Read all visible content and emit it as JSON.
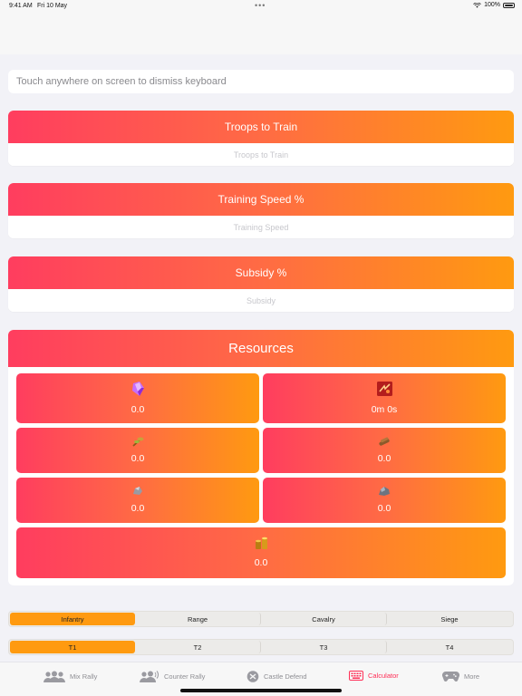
{
  "status": {
    "time": "9:41 AM",
    "date": "Fri 10 May",
    "battery": "100%"
  },
  "keyboard_hint": "Touch anywhere on screen to dismiss keyboard",
  "troops": {
    "title": "Troops to Train",
    "placeholder": "Troops to Train"
  },
  "training_speed": {
    "title": "Training Speed %",
    "placeholder": "Training Speed"
  },
  "subsidy": {
    "title": "Subsidy %",
    "placeholder": "Subsidy"
  },
  "resources": {
    "title": "Resources",
    "tiles": [
      {
        "icon": "gem-icon",
        "value": "0.0"
      },
      {
        "icon": "timer-icon",
        "value": "0m 0s"
      },
      {
        "icon": "food-icon",
        "value": "0.0"
      },
      {
        "icon": "wood-icon",
        "value": "0.0"
      },
      {
        "icon": "stone-icon",
        "value": "0.0"
      },
      {
        "icon": "ore-icon",
        "value": "0.0"
      },
      {
        "icon": "gold-icon",
        "value": "0.0"
      }
    ]
  },
  "troop_types": {
    "options": [
      "Infantry",
      "Range",
      "Cavalry",
      "Siege"
    ],
    "selected": "Infantry"
  },
  "tiers": {
    "options": [
      "T1",
      "T2",
      "T3",
      "T4"
    ],
    "selected": "T1"
  },
  "tab_bar": {
    "items": [
      {
        "label": "Mix Rally",
        "icon": "group-icon"
      },
      {
        "label": "Counter Rally",
        "icon": "group-sound-icon"
      },
      {
        "label": "Castle Defend",
        "icon": "shield-icon"
      },
      {
        "label": "Calculator",
        "icon": "keyboard-icon"
      },
      {
        "label": "More",
        "icon": "gamepad-icon"
      }
    ],
    "active": "Calculator"
  },
  "colors": {
    "accent_start": "#ff3d5f",
    "accent_end": "#ff9a10",
    "tab_active": "#ff2d55"
  }
}
